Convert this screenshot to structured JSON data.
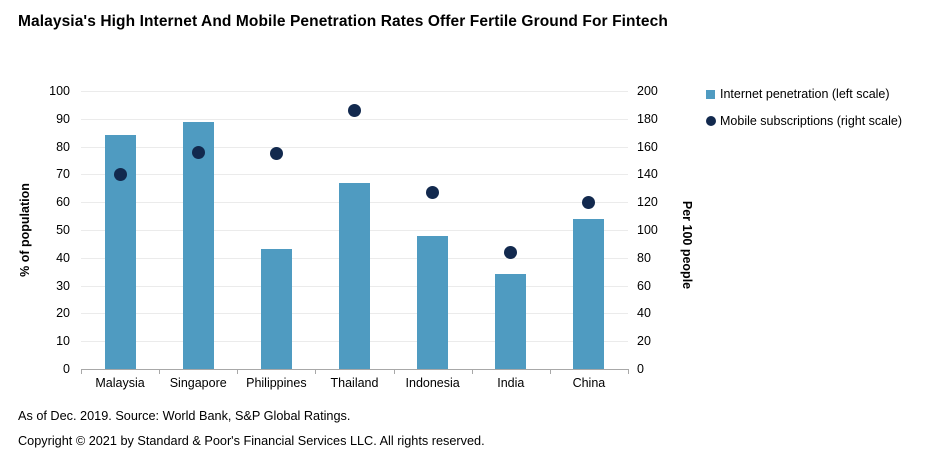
{
  "title": "Malaysia's High Internet And Mobile Penetration Rates Offer Fertile Ground For Fintech",
  "legend": {
    "items": [
      {
        "label": "Internet penetration (left scale)",
        "marker": "square",
        "color": "#4F9BC1"
      },
      {
        "label": "Mobile subscriptions (right scale)",
        "marker": "circle",
        "color": "#12294E"
      }
    ]
  },
  "footer": {
    "source_line": "As of Dec. 2019. Source: World Bank, S&P Global Ratings.",
    "copyright_line": "Copyright © 2021 by Standard & Poor's Financial Services LLC. All rights reserved."
  },
  "colors": {
    "bar": "#4F9BC1",
    "dot": "#12294E",
    "gridline": "#ebebeb",
    "axis_line": "#a8a8a8"
  },
  "chart_data": {
    "type": "bar",
    "categories": [
      "Malaysia",
      "Singapore",
      "Philippines",
      "Thailand",
      "Indonesia",
      "India",
      "China"
    ],
    "series": [
      {
        "name": "Internet penetration (left scale)",
        "render": "bar",
        "axis": "left",
        "values": [
          84,
          89,
          43,
          67,
          48,
          34,
          54
        ],
        "color": "#4F9BC1"
      },
      {
        "name": "Mobile subscriptions (right scale)",
        "render": "scatter",
        "axis": "right",
        "values": [
          140,
          156,
          155,
          186,
          127,
          84,
          120
        ],
        "color": "#12294E"
      }
    ],
    "left_axis": {
      "label": "% of population",
      "min": 0,
      "max": 100,
      "step": 10
    },
    "right_axis": {
      "label": "Per 100 people",
      "min": 0,
      "max": 200,
      "step": 20
    },
    "grid": true,
    "legend_position": "top-right",
    "title": "Malaysia's High Internet And Mobile Penetration Rates Offer Fertile Ground For Fintech"
  }
}
